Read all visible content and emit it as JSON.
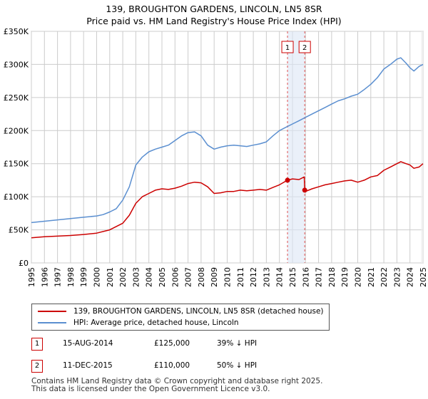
{
  "title_line1": "139, BROUGHTON GARDENS, LINCOLN, LN5 8SR",
  "title_line2": "Price paid vs. HM Land Registry's House Price Index (HPI)",
  "legend": {
    "series1_label": "139, BROUGHTON GARDENS, LINCOLN, LN5 8SR (detached house)",
    "series2_label": "HPI: Average price, detached house, Lincoln"
  },
  "transactions": [
    {
      "num": "1",
      "date": "15-AUG-2014",
      "price": "£125,000",
      "hpi": "39% ↓ HPI"
    },
    {
      "num": "2",
      "date": "11-DEC-2015",
      "price": "£110,000",
      "hpi": "50% ↓ HPI"
    }
  ],
  "footer_line1": "Contains HM Land Registry data © Crown copyright and database right 2025.",
  "footer_line2": "This data is licensed under the Open Government Licence v3.0.",
  "colors": {
    "property": "#cc0000",
    "hpi": "#5b8fd0",
    "grid": "#cccccc",
    "marker_band": "#dce6f5"
  },
  "chart_data": {
    "type": "line",
    "ylabels": [
      "£0",
      "£50K",
      "£100K",
      "£150K",
      "£200K",
      "£250K",
      "£300K",
      "£350K"
    ],
    "yticks": [
      0,
      50000,
      100000,
      150000,
      200000,
      250000,
      300000,
      350000
    ],
    "ylim": [
      0,
      350000
    ],
    "xlim": [
      1995,
      2025
    ],
    "xlabels": [
      "1995",
      "1996",
      "1997",
      "1998",
      "1999",
      "2000",
      "2001",
      "2002",
      "2003",
      "2004",
      "2005",
      "2006",
      "2007",
      "2008",
      "2009",
      "2010",
      "2011",
      "2012",
      "2013",
      "2014",
      "2015",
      "2016",
      "2017",
      "2018",
      "2019",
      "2020",
      "2021",
      "2022",
      "2023",
      "2024",
      "2025"
    ],
    "markers": [
      {
        "label": "1",
        "x": 2014.62,
        "value": 125000
      },
      {
        "label": "2",
        "x": 2015.94,
        "value": 110000
      }
    ],
    "series": [
      {
        "name": "139, BROUGHTON GARDENS, LINCOLN, LN5 8SR (detached house)",
        "x": [
          1995,
          1996,
          1997,
          1998,
          1999,
          2000,
          2001,
          2002,
          2002.5,
          2003,
          2003.5,
          2004,
          2004.5,
          2005,
          2005.5,
          2006,
          2006.5,
          2007,
          2007.5,
          2008,
          2008.5,
          2009,
          2009.5,
          2010,
          2010.5,
          2011,
          2011.5,
          2012,
          2012.5,
          2013,
          2013.5,
          2014,
          2014.62,
          2015,
          2015.5,
          2015.9,
          2015.94,
          2016,
          2016.5,
          2017,
          2017.5,
          2018,
          2018.5,
          2019,
          2019.5,
          2020,
          2020.5,
          2021,
          2021.5,
          2022,
          2022.5,
          2023,
          2023.3,
          2023.7,
          2024,
          2024.3,
          2024.7,
          2025
        ],
        "values": [
          38000,
          39500,
          40500,
          41500,
          43000,
          45000,
          50000,
          60000,
          72000,
          90000,
          100000,
          105000,
          110000,
          112000,
          111000,
          113000,
          116000,
          120000,
          122000,
          121000,
          115000,
          105000,
          106000,
          108000,
          108000,
          110000,
          109000,
          110000,
          111000,
          110000,
          114000,
          118000,
          125000,
          127000,
          126000,
          130000,
          110000,
          108000,
          112000,
          115000,
          118000,
          120000,
          122000,
          124000,
          125000,
          122000,
          125000,
          130000,
          132000,
          140000,
          145000,
          150000,
          153000,
          150000,
          148000,
          143000,
          145000,
          150000
        ]
      },
      {
        "name": "HPI: Average price, detached house, Lincoln",
        "x": [
          1995,
          1996,
          1997,
          1998,
          1999,
          2000,
          2000.5,
          2001,
          2001.5,
          2002,
          2002.5,
          2003,
          2003.5,
          2004,
          2004.5,
          2005,
          2005.5,
          2006,
          2006.5,
          2007,
          2007.5,
          2008,
          2008.5,
          2009,
          2009.5,
          2010,
          2010.5,
          2011,
          2011.5,
          2012,
          2012.5,
          2013,
          2013.5,
          2014,
          2014.5,
          2015,
          2015.5,
          2016,
          2016.5,
          2017,
          2017.5,
          2018,
          2018.5,
          2019,
          2019.5,
          2020,
          2020.5,
          2021,
          2021.5,
          2022,
          2022.5,
          2023,
          2023.3,
          2023.7,
          2024,
          2024.3,
          2024.7,
          2025
        ],
        "values": [
          61000,
          63000,
          65000,
          67000,
          69000,
          71000,
          73000,
          77000,
          82000,
          95000,
          115000,
          148000,
          160000,
          168000,
          172000,
          175000,
          178000,
          185000,
          192000,
          197000,
          198000,
          192000,
          178000,
          172000,
          175000,
          177000,
          178000,
          177000,
          176000,
          178000,
          180000,
          183000,
          192000,
          200000,
          205000,
          210000,
          215000,
          220000,
          225000,
          230000,
          235000,
          240000,
          245000,
          248000,
          252000,
          255000,
          262000,
          270000,
          280000,
          293000,
          300000,
          308000,
          310000,
          302000,
          295000,
          290000,
          297000,
          300000
        ]
      }
    ]
  }
}
